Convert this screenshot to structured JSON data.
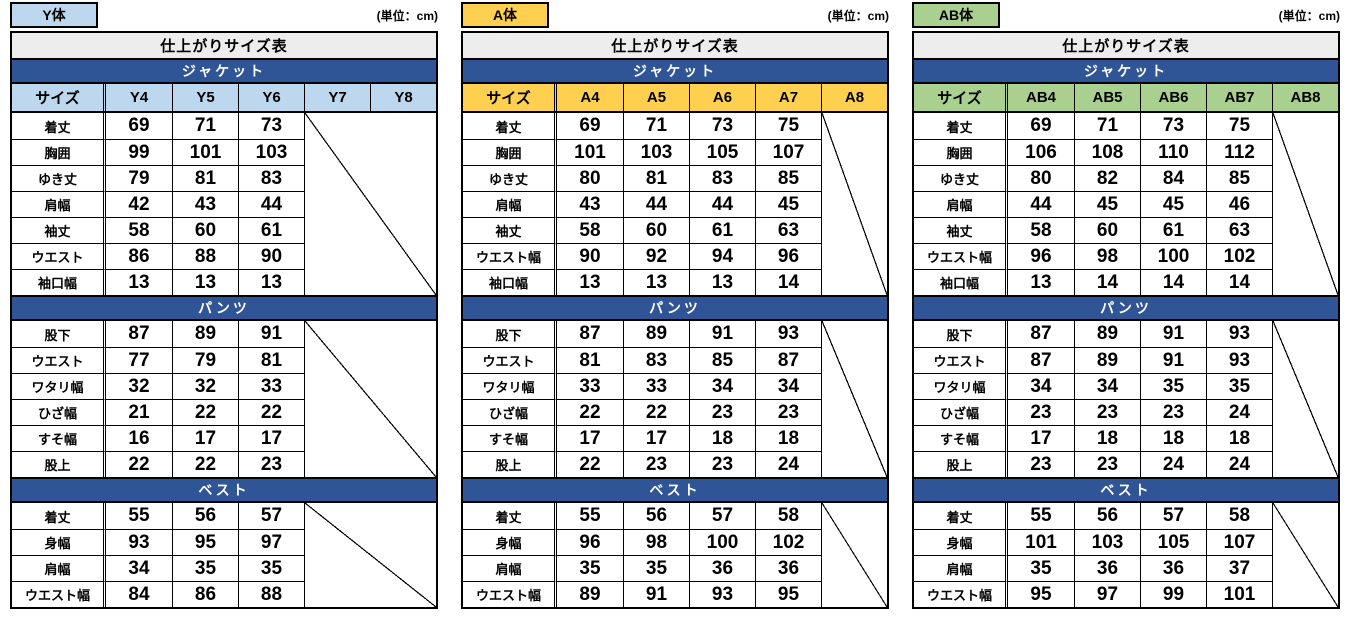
{
  "unit_label": "(単位：cm)",
  "title": "仕上がりサイズ表",
  "colors": {
    "section_band_bg": "#2F5597",
    "section_band_text": "#FFFFFF",
    "title_bg": "#EDEDED",
    "border": "#000000",
    "y_accent": "#BDD7EE",
    "a_accent": "#FFD04F",
    "ab_accent": "#A9D08E"
  },
  "tables": [
    {
      "tag": "Y体",
      "accent_color": "#BDD7EE",
      "size_header": [
        "サイズ",
        "Y4",
        "Y5",
        "Y6",
        "Y7",
        "Y8"
      ],
      "filled_columns": 3,
      "sections": [
        {
          "name": "ジャケット",
          "rows": [
            {
              "label": "着丈",
              "values": [
                69,
                71,
                73
              ]
            },
            {
              "label": "胸囲",
              "values": [
                99,
                101,
                103
              ]
            },
            {
              "label": "ゆき丈",
              "values": [
                79,
                81,
                83
              ]
            },
            {
              "label": "肩幅",
              "values": [
                42,
                43,
                44
              ]
            },
            {
              "label": "袖丈",
              "values": [
                58,
                60,
                61
              ]
            },
            {
              "label": "ウエスト",
              "values": [
                86,
                88,
                90
              ]
            },
            {
              "label": "袖口幅",
              "values": [
                13,
                13,
                13
              ]
            }
          ]
        },
        {
          "name": "パンツ",
          "rows": [
            {
              "label": "股下",
              "values": [
                87,
                89,
                91
              ]
            },
            {
              "label": "ウエスト",
              "values": [
                77,
                79,
                81
              ]
            },
            {
              "label": "ワタリ幅",
              "values": [
                32,
                32,
                33
              ]
            },
            {
              "label": "ひざ幅",
              "values": [
                21,
                22,
                22
              ]
            },
            {
              "label": "すそ幅",
              "values": [
                16,
                17,
                17
              ]
            },
            {
              "label": "股上",
              "values": [
                22,
                22,
                23
              ]
            }
          ]
        },
        {
          "name": "ベスト",
          "rows": [
            {
              "label": "着丈",
              "values": [
                55,
                56,
                57
              ]
            },
            {
              "label": "身幅",
              "values": [
                93,
                95,
                97
              ]
            },
            {
              "label": "肩幅",
              "values": [
                34,
                35,
                35
              ]
            },
            {
              "label": "ウエスト幅",
              "values": [
                84,
                86,
                88
              ]
            }
          ]
        }
      ]
    },
    {
      "tag": "A体",
      "accent_color": "#FFD04F",
      "size_header": [
        "サイズ",
        "A4",
        "A5",
        "A6",
        "A7",
        "A8"
      ],
      "filled_columns": 4,
      "sections": [
        {
          "name": "ジャケット",
          "rows": [
            {
              "label": "着丈",
              "values": [
                69,
                71,
                73,
                75
              ]
            },
            {
              "label": "胸囲",
              "values": [
                101,
                103,
                105,
                107
              ]
            },
            {
              "label": "ゆき丈",
              "values": [
                80,
                81,
                83,
                85
              ]
            },
            {
              "label": "肩幅",
              "values": [
                43,
                44,
                44,
                45
              ]
            },
            {
              "label": "袖丈",
              "values": [
                58,
                60,
                61,
                63
              ]
            },
            {
              "label": "ウエスト幅",
              "values": [
                90,
                92,
                94,
                96
              ]
            },
            {
              "label": "袖口幅",
              "values": [
                13,
                13,
                13,
                14
              ]
            }
          ]
        },
        {
          "name": "パンツ",
          "rows": [
            {
              "label": "股下",
              "values": [
                87,
                89,
                91,
                93
              ]
            },
            {
              "label": "ウエスト",
              "values": [
                81,
                83,
                85,
                87
              ]
            },
            {
              "label": "ワタリ幅",
              "values": [
                33,
                33,
                34,
                34
              ]
            },
            {
              "label": "ひざ幅",
              "values": [
                22,
                22,
                23,
                23
              ]
            },
            {
              "label": "すそ幅",
              "values": [
                17,
                17,
                18,
                18
              ]
            },
            {
              "label": "股上",
              "values": [
                22,
                23,
                23,
                24
              ]
            }
          ]
        },
        {
          "name": "ベスト",
          "rows": [
            {
              "label": "着丈",
              "values": [
                55,
                56,
                57,
                58
              ]
            },
            {
              "label": "身幅",
              "values": [
                96,
                98,
                100,
                102
              ]
            },
            {
              "label": "肩幅",
              "values": [
                35,
                35,
                36,
                36
              ]
            },
            {
              "label": "ウエスト幅",
              "values": [
                89,
                91,
                93,
                95
              ]
            }
          ]
        }
      ]
    },
    {
      "tag": "AB体",
      "accent_color": "#A9D08E",
      "size_header": [
        "サイズ",
        "AB4",
        "AB5",
        "AB6",
        "AB7",
        "AB8"
      ],
      "filled_columns": 4,
      "sections": [
        {
          "name": "ジャケット",
          "rows": [
            {
              "label": "着丈",
              "values": [
                69,
                71,
                73,
                75
              ]
            },
            {
              "label": "胸囲",
              "values": [
                106,
                108,
                110,
                112
              ]
            },
            {
              "label": "ゆき丈",
              "values": [
                80,
                82,
                84,
                85
              ]
            },
            {
              "label": "肩幅",
              "values": [
                44,
                45,
                45,
                46
              ]
            },
            {
              "label": "袖丈",
              "values": [
                58,
                60,
                61,
                63
              ]
            },
            {
              "label": "ウエスト幅",
              "values": [
                96,
                98,
                100,
                102
              ]
            },
            {
              "label": "袖口幅",
              "values": [
                13,
                14,
                14,
                14
              ]
            }
          ]
        },
        {
          "name": "パンツ",
          "rows": [
            {
              "label": "股下",
              "values": [
                87,
                89,
                91,
                93
              ]
            },
            {
              "label": "ウエスト",
              "values": [
                87,
                89,
                91,
                93
              ]
            },
            {
              "label": "ワタリ幅",
              "values": [
                34,
                34,
                35,
                35
              ]
            },
            {
              "label": "ひざ幅",
              "values": [
                23,
                23,
                23,
                24
              ]
            },
            {
              "label": "すそ幅",
              "values": [
                17,
                18,
                18,
                18
              ]
            },
            {
              "label": "股上",
              "values": [
                23,
                23,
                24,
                24
              ]
            }
          ]
        },
        {
          "name": "ベスト",
          "rows": [
            {
              "label": "着丈",
              "values": [
                55,
                56,
                57,
                58
              ]
            },
            {
              "label": "身幅",
              "values": [
                101,
                103,
                105,
                107
              ]
            },
            {
              "label": "肩幅",
              "values": [
                35,
                36,
                36,
                37
              ]
            },
            {
              "label": "ウエスト幅",
              "values": [
                95,
                97,
                99,
                101
              ]
            }
          ]
        }
      ]
    }
  ]
}
